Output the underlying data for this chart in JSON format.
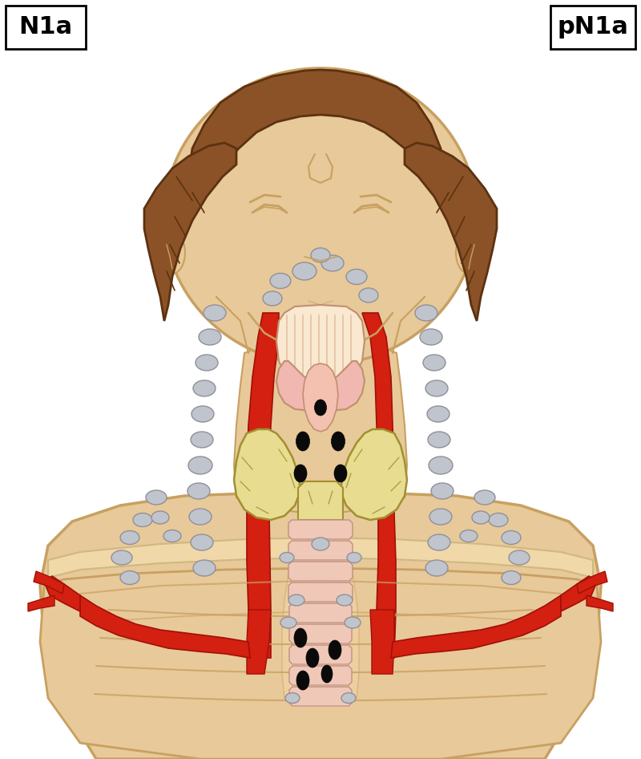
{
  "title_left": "N1a",
  "title_right": "pN1a",
  "bg_color": "#ffffff",
  "skin_color": "#E8C99A",
  "skin_mid": "#DDB87A",
  "skin_dark": "#C8A060",
  "hair_color": "#8B5228",
  "hair_dark": "#5C3210",
  "red_vessel": "#D42010",
  "red_vessel_light": "#E84030",
  "lymph_gray": "#C0C4CC",
  "lymph_gray_dark": "#909098",
  "lymph_black": "#0A0A0A",
  "trachea_color": "#F0C8B8",
  "trachea_outline": "#C09080",
  "trachea_sep": "#D8A898",
  "thyroid_color": "#E8DC90",
  "thyroid_outline": "#A09030",
  "larynx_color": "#F4D0C0",
  "larynx_outline": "#C09070",
  "stripe_bg": "#FAE8D0",
  "stripe_line": "#DDB898",
  "chest_color": "#F0D8A8",
  "chest_dark": "#D0B880"
}
